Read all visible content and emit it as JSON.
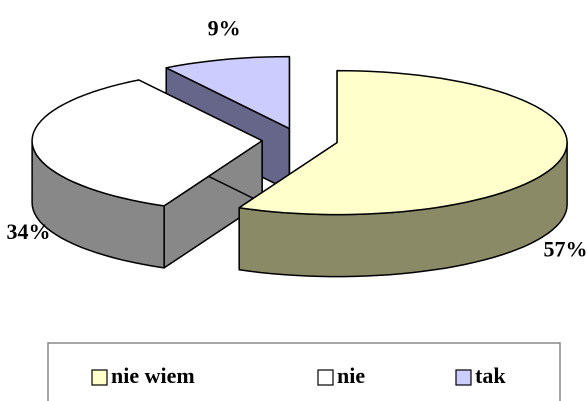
{
  "chart_data": {
    "type": "pie",
    "categories": [
      "nie wiem",
      "nie",
      "tak"
    ],
    "values": [
      57,
      34,
      9
    ],
    "value_labels": [
      "57%",
      "34%",
      "9%"
    ],
    "colors": [
      "#ffffcc",
      "#ffffff",
      "#ccccff"
    ],
    "side_colors": [
      "#8a8a66",
      "#888888",
      "#66668a"
    ],
    "legend": "bottom"
  }
}
